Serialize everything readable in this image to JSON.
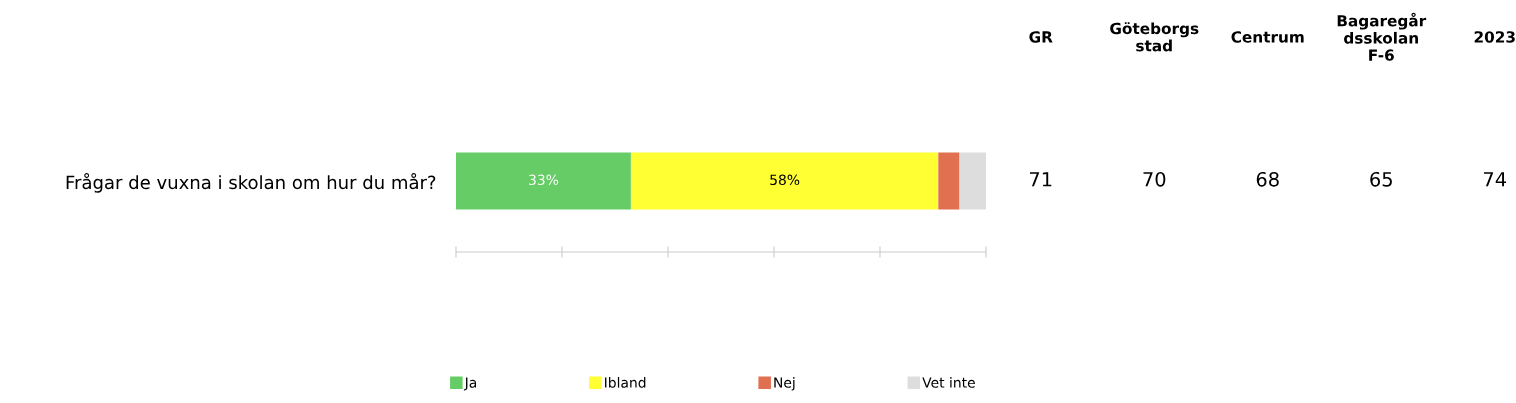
{
  "chart_data": [
    {
      "type": "bar",
      "orientation": "horizontal",
      "stacked": true,
      "categories": [
        "Frågar de vuxna i skolan om hur du mår?"
      ],
      "series": [
        {
          "name": "Ja",
          "color": "#66cd66",
          "values": [
            33
          ],
          "value_labels": [
            "33%"
          ]
        },
        {
          "name": "Ibland",
          "color": "#ffff33",
          "values": [
            58
          ],
          "value_labels": [
            "58%"
          ]
        },
        {
          "name": "Nej",
          "color": "#e07050",
          "values": [
            4
          ],
          "value_labels": [
            null
          ]
        },
        {
          "name": "Vet inte",
          "color": "#dddddd",
          "values": [
            5
          ],
          "value_labels": [
            null
          ]
        }
      ],
      "xlim": [
        0,
        100
      ],
      "xticks": [
        {
          "value": 0,
          "label": null
        },
        {
          "value": 20,
          "label": null
        },
        {
          "value": 40,
          "label": null
        },
        {
          "value": 60,
          "label": null
        },
        {
          "value": 80,
          "label": null
        },
        {
          "value": 100,
          "label": null
        }
      ],
      "legend": "bottom",
      "marker": "square",
      "grid": false
    },
    {
      "type": "other",
      "categories": [
        "GR",
        "Göteborgs\nstad",
        "Centrum",
        "Bagaregår\ndsskolan\nF-6",
        "2023"
      ],
      "values": [
        71,
        70,
        68,
        65,
        74
      ],
      "data_labels": true
    }
  ]
}
